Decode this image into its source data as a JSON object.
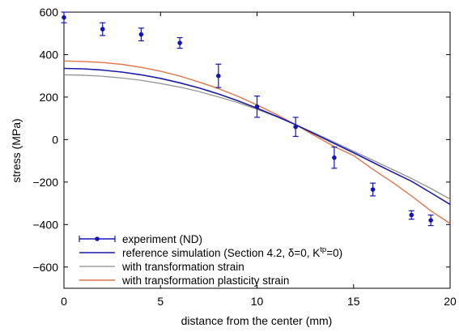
{
  "chart_data": {
    "type": "line",
    "xlabel": "distance from the center (mm)",
    "ylabel": "stress (MPa)",
    "xlim": [
      0,
      20
    ],
    "ylim": [
      -700,
      600
    ],
    "x_ticks": [
      0,
      5,
      10,
      15,
      20
    ],
    "y_ticks": [
      600,
      400,
      200,
      0,
      -200,
      -400,
      -600
    ],
    "grid": false,
    "legend_position": "bottom-left",
    "legend": [
      {
        "series": 0,
        "label": "experiment (ND)"
      },
      {
        "series": 1,
        "label_parts": [
          "reference simulation (Section 4.2, δ=0, K",
          "tp",
          "=0)"
        ]
      },
      {
        "series": 2,
        "label": "with transformation strain"
      },
      {
        "series": 3,
        "label": "with transformation plasticity strain"
      }
    ],
    "series": [
      {
        "name": "experiment (ND)",
        "kind": "errorbar",
        "color": "#1515b5",
        "x": [
          0,
          2,
          4,
          6,
          8,
          10,
          12,
          14,
          16,
          18,
          19
        ],
        "y": [
          575,
          520,
          495,
          455,
          300,
          155,
          60,
          -85,
          -235,
          -355,
          -380
        ],
        "err": [
          25,
          30,
          30,
          25,
          55,
          50,
          45,
          50,
          30,
          20,
          25
        ]
      },
      {
        "name": "reference simulation (Section 4.2, δ=0, Ktp=0)",
        "kind": "line",
        "color": "#1a1aa8",
        "x": [
          0,
          1,
          2,
          3,
          4,
          5,
          6,
          7,
          8,
          9,
          10,
          11,
          12,
          13,
          14,
          15,
          16,
          17,
          18,
          19,
          20
        ],
        "y": [
          335,
          333,
          327,
          318,
          305,
          288,
          267,
          243,
          215,
          183,
          148,
          110,
          70,
          26,
          -18,
          -62,
          -107,
          -152,
          -196,
          -250,
          -305
        ]
      },
      {
        "name": "with transformation strain",
        "kind": "line",
        "color": "#8c8c8c",
        "x": [
          0,
          1,
          2,
          3,
          4,
          5,
          6,
          7,
          8,
          9,
          10,
          11,
          12,
          13,
          14,
          15,
          16,
          17,
          18,
          19,
          20
        ],
        "y": [
          305,
          303,
          298,
          290,
          279,
          264,
          247,
          226,
          201,
          174,
          143,
          108,
          70,
          30,
          -12,
          -55,
          -97,
          -140,
          -183,
          -230,
          -280
        ]
      },
      {
        "name": "with transformation plasticity strain",
        "kind": "line",
        "color": "#e0744a",
        "x": [
          0,
          1,
          2,
          3,
          4,
          5,
          6,
          7,
          8,
          9,
          10,
          11,
          12,
          13,
          14,
          15,
          16,
          17,
          18,
          19,
          20
        ],
        "y": [
          370,
          368,
          363,
          354,
          340,
          322,
          299,
          271,
          240,
          204,
          163,
          118,
          70,
          18,
          -33,
          -75,
          -140,
          -200,
          -265,
          -335,
          -395
        ]
      }
    ]
  }
}
